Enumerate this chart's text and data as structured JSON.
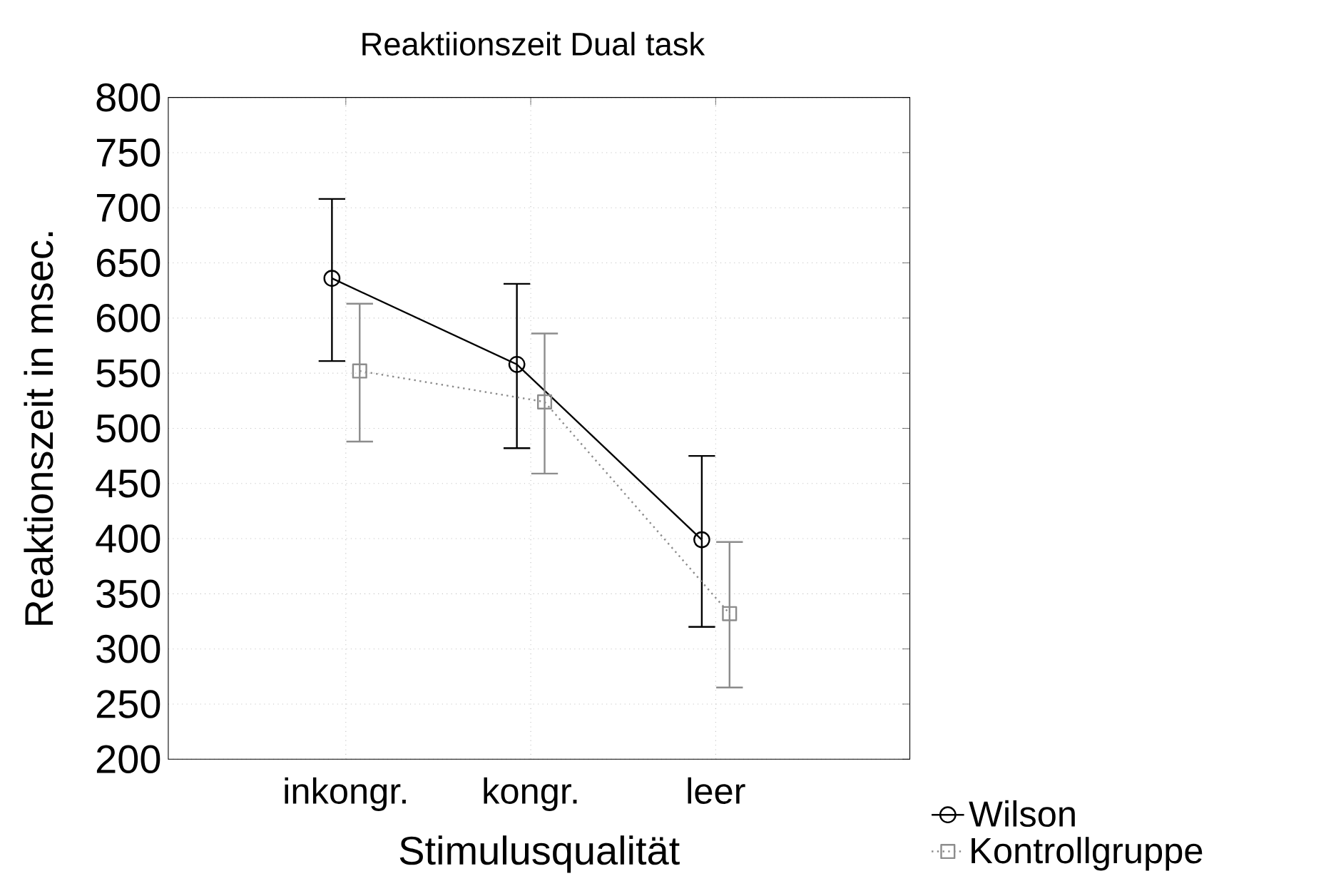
{
  "chart_data": {
    "type": "line",
    "title": "Reaktiionszeit Dual task",
    "xlabel": "Stimulusqualität",
    "ylabel": "Reaktionszeit in msec.",
    "categories": [
      "inkongr.",
      "kongr.",
      "leer"
    ],
    "series": [
      {
        "name": "Wilson",
        "color": "#000000",
        "values": [
          636,
          558,
          399
        ],
        "errors": [
          [
            561,
            708
          ],
          [
            482,
            631
          ],
          [
            320,
            475
          ]
        ],
        "marker": "circle",
        "line_style": "solid"
      },
      {
        "name": "Kontrollgruppe",
        "color": "#8c8c8c",
        "values": [
          552,
          524,
          332
        ],
        "errors": [
          [
            488,
            613
          ],
          [
            459,
            586
          ],
          [
            265,
            397
          ]
        ],
        "marker": "square",
        "line_style": "dotted"
      }
    ],
    "ylim": [
      200,
      800
    ],
    "yticks": [
      200,
      250,
      300,
      350,
      400,
      450,
      500,
      550,
      600,
      650,
      700,
      750,
      800
    ],
    "grid": true,
    "legend": "bottom right"
  }
}
